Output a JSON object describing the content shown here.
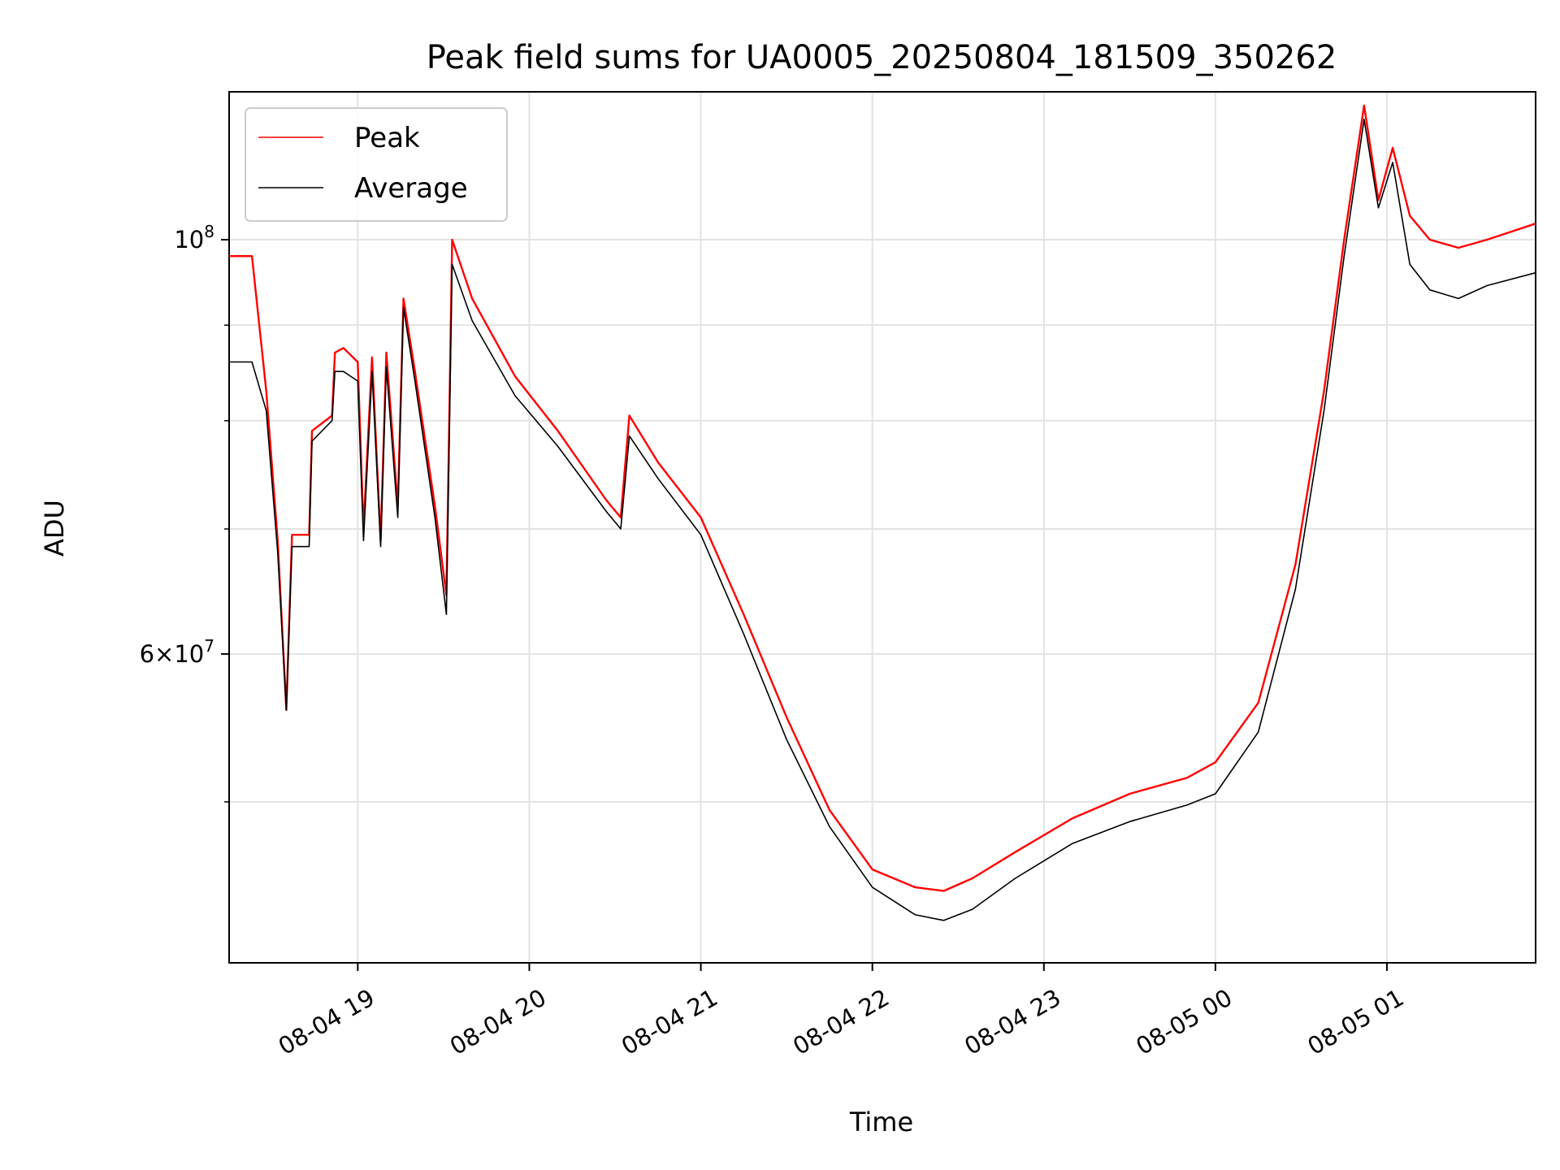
{
  "chart_data": {
    "type": "line",
    "title": "Peak field sums for UA0005_20250804_181509_350262",
    "xlabel": "Time",
    "ylabel": "ADU",
    "yscale": "log",
    "ylim": [
      41000000,
      120000000
    ],
    "xlim": [
      "2025-08-04 18:15",
      "2025-08-05 01:52"
    ],
    "grid": true,
    "legend_position": "top-left",
    "x_ticks": [
      {
        "t": "2025-08-04 19:00",
        "label": "08-04 19"
      },
      {
        "t": "2025-08-04 20:00",
        "label": "08-04 20"
      },
      {
        "t": "2025-08-04 21:00",
        "label": "08-04 21"
      },
      {
        "t": "2025-08-04 22:00",
        "label": "08-04 22"
      },
      {
        "t": "2025-08-04 23:00",
        "label": "08-04 23"
      },
      {
        "t": "2025-08-05 00:00",
        "label": "08-05 00"
      },
      {
        "t": "2025-08-05 01:00",
        "label": "08-05 01"
      }
    ],
    "y_ticks": [
      {
        "v": 60000000,
        "base": "6",
        "exp": "7",
        "label": "6 × 10^7"
      },
      {
        "v": 100000000,
        "base": "",
        "exp": "8",
        "label": "10^8"
      }
    ],
    "y_minor_ticks": [
      50000000,
      70000000,
      80000000,
      90000000
    ],
    "series": [
      {
        "name": "Peak",
        "color": "#ff0000",
        "points": [
          [
            "2025-08-04 18:15",
            98000000
          ],
          [
            "2025-08-04 18:23",
            98000000
          ],
          [
            "2025-08-04 18:28",
            83000000
          ],
          [
            "2025-08-04 18:32",
            69000000
          ],
          [
            "2025-08-04 18:35",
            56000000
          ],
          [
            "2025-08-04 18:37",
            69500000
          ],
          [
            "2025-08-04 18:43",
            69500000
          ],
          [
            "2025-08-04 18:44",
            79000000
          ],
          [
            "2025-08-04 18:51",
            80500000
          ],
          [
            "2025-08-04 18:52",
            87000000
          ],
          [
            "2025-08-04 18:55",
            87500000
          ],
          [
            "2025-08-04 19:00",
            86000000
          ],
          [
            "2025-08-04 19:02",
            70000000
          ],
          [
            "2025-08-04 19:05",
            86500000
          ],
          [
            "2025-08-04 19:08",
            69000000
          ],
          [
            "2025-08-04 19:10",
            87000000
          ],
          [
            "2025-08-04 19:14",
            72000000
          ],
          [
            "2025-08-04 19:16",
            93000000
          ],
          [
            "2025-08-04 19:20",
            85000000
          ],
          [
            "2025-08-04 19:27",
            72000000
          ],
          [
            "2025-08-04 19:31",
            64500000
          ],
          [
            "2025-08-04 19:33",
            100000000
          ],
          [
            "2025-08-04 19:40",
            93000000
          ],
          [
            "2025-08-04 19:55",
            84500000
          ],
          [
            "2025-08-04 20:10",
            79000000
          ],
          [
            "2025-08-04 20:27",
            72500000
          ],
          [
            "2025-08-04 20:32",
            71000000
          ],
          [
            "2025-08-04 20:35",
            80500000
          ],
          [
            "2025-08-04 20:45",
            76000000
          ],
          [
            "2025-08-04 21:00",
            71000000
          ],
          [
            "2025-08-04 21:15",
            63000000
          ],
          [
            "2025-08-04 21:30",
            55500000
          ],
          [
            "2025-08-04 21:45",
            49500000
          ],
          [
            "2025-08-04 22:00",
            46000000
          ],
          [
            "2025-08-04 22:15",
            45000000
          ],
          [
            "2025-08-04 22:25",
            44800000
          ],
          [
            "2025-08-04 22:35",
            45500000
          ],
          [
            "2025-08-04 22:50",
            47000000
          ],
          [
            "2025-08-04 23:10",
            49000000
          ],
          [
            "2025-08-04 23:30",
            50500000
          ],
          [
            "2025-08-04 23:50",
            51500000
          ],
          [
            "2025-08-05 00:00",
            52500000
          ],
          [
            "2025-08-05 00:15",
            56500000
          ],
          [
            "2025-08-05 00:28",
            67000000
          ],
          [
            "2025-08-05 00:38",
            83000000
          ],
          [
            "2025-08-05 00:45",
            100000000
          ],
          [
            "2025-08-05 00:52",
            118000000
          ],
          [
            "2025-08-05 00:57",
            105000000
          ],
          [
            "2025-08-05 01:02",
            112000000
          ],
          [
            "2025-08-05 01:08",
            103000000
          ],
          [
            "2025-08-05 01:15",
            100000000
          ],
          [
            "2025-08-05 01:25",
            99000000
          ],
          [
            "2025-08-05 01:35",
            100000000
          ],
          [
            "2025-08-05 01:52",
            102000000
          ]
        ]
      },
      {
        "name": "Average",
        "color": "#000000",
        "points": [
          [
            "2025-08-04 18:15",
            86000000
          ],
          [
            "2025-08-04 18:23",
            86000000
          ],
          [
            "2025-08-04 18:28",
            81000000
          ],
          [
            "2025-08-04 18:32",
            68000000
          ],
          [
            "2025-08-04 18:35",
            56000000
          ],
          [
            "2025-08-04 18:37",
            68500000
          ],
          [
            "2025-08-04 18:43",
            68500000
          ],
          [
            "2025-08-04 18:44",
            78000000
          ],
          [
            "2025-08-04 18:51",
            80000000
          ],
          [
            "2025-08-04 18:52",
            85000000
          ],
          [
            "2025-08-04 18:55",
            85000000
          ],
          [
            "2025-08-04 19:00",
            84000000
          ],
          [
            "2025-08-04 19:02",
            69000000
          ],
          [
            "2025-08-04 19:05",
            85000000
          ],
          [
            "2025-08-04 19:08",
            68500000
          ],
          [
            "2025-08-04 19:10",
            85500000
          ],
          [
            "2025-08-04 19:14",
            71000000
          ],
          [
            "2025-08-04 19:16",
            92000000
          ],
          [
            "2025-08-04 19:20",
            84000000
          ],
          [
            "2025-08-04 19:27",
            71000000
          ],
          [
            "2025-08-04 19:31",
            63000000
          ],
          [
            "2025-08-04 19:33",
            97000000
          ],
          [
            "2025-08-04 19:40",
            90500000
          ],
          [
            "2025-08-04 19:55",
            82500000
          ],
          [
            "2025-08-04 20:10",
            77500000
          ],
          [
            "2025-08-04 20:27",
            71500000
          ],
          [
            "2025-08-04 20:32",
            70000000
          ],
          [
            "2025-08-04 20:35",
            78500000
          ],
          [
            "2025-08-04 20:45",
            74500000
          ],
          [
            "2025-08-04 21:00",
            69500000
          ],
          [
            "2025-08-04 21:15",
            61500000
          ],
          [
            "2025-08-04 21:30",
            54000000
          ],
          [
            "2025-08-04 21:45",
            48500000
          ],
          [
            "2025-08-04 22:00",
            45000000
          ],
          [
            "2025-08-04 22:15",
            43500000
          ],
          [
            "2025-08-04 22:25",
            43200000
          ],
          [
            "2025-08-04 22:35",
            43800000
          ],
          [
            "2025-08-04 22:50",
            45500000
          ],
          [
            "2025-08-04 23:10",
            47500000
          ],
          [
            "2025-08-04 23:30",
            48800000
          ],
          [
            "2025-08-04 23:50",
            49800000
          ],
          [
            "2025-08-05 00:00",
            50500000
          ],
          [
            "2025-08-05 00:15",
            54500000
          ],
          [
            "2025-08-05 00:28",
            65000000
          ],
          [
            "2025-08-05 00:38",
            81000000
          ],
          [
            "2025-08-05 00:45",
            98000000
          ],
          [
            "2025-08-05 00:52",
            116000000
          ],
          [
            "2025-08-05 00:57",
            104000000
          ],
          [
            "2025-08-05 01:02",
            110000000
          ],
          [
            "2025-08-05 01:08",
            97000000
          ],
          [
            "2025-08-05 01:15",
            94000000
          ],
          [
            "2025-08-05 01:25",
            93000000
          ],
          [
            "2025-08-05 01:35",
            94500000
          ],
          [
            "2025-08-05 01:52",
            96000000
          ]
        ]
      }
    ]
  }
}
